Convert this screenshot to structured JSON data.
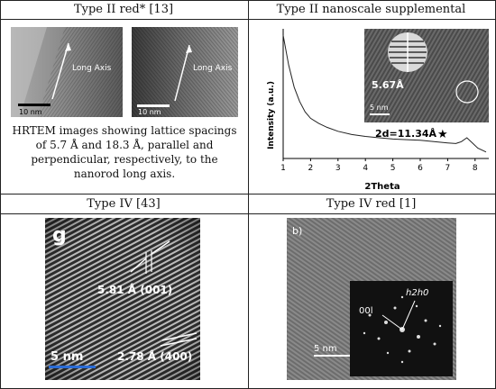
{
  "panels": {
    "top_left": {
      "title": "Type II red* [13]",
      "image_a": {
        "label": "Long Axis",
        "scale": "10 nm"
      },
      "image_b": {
        "label": "Long Axis",
        "scale": "10 nm"
      },
      "caption": "HRTEM images showing lattice spacings of 5.7 Å and 18.3 Å, parallel and perpendicular, respectively, to the nanorod long axis."
    },
    "top_right": {
      "title": "Type II nanoscale supplemental",
      "inset": {
        "spacing": "5.67Å",
        "scale": "5 nm"
      },
      "peak_label": "2d=11.34Å",
      "star": "★"
    },
    "bottom_left": {
      "title": "Type IV [43]",
      "panel_letter": "g",
      "spacing_1": "5.81 Å (001)",
      "spacing_2": "2.78 Å (400)",
      "scale": "5 nm"
    },
    "bottom_right": {
      "title": "Type IV red [1]",
      "panel_letter": "b)",
      "fft_label_1": "h2h0",
      "fft_label_2": "00l",
      "scale": "5 nm"
    }
  },
  "chart_data": {
    "type": "line",
    "title": "",
    "xlabel": "2Theta",
    "ylabel": "Intensity (a.u.)",
    "xlim": [
      1,
      8.5
    ],
    "ylim": [
      0,
      1
    ],
    "xticks": [
      1,
      2,
      3,
      4,
      5,
      6,
      7,
      8
    ],
    "x": [
      1.0,
      1.2,
      1.4,
      1.6,
      1.8,
      2.0,
      2.3,
      2.6,
      3.0,
      3.5,
      4.0,
      4.5,
      5.0,
      5.5,
      6.0,
      6.5,
      7.0,
      7.3,
      7.5,
      7.7,
      7.9,
      8.1,
      8.4
    ],
    "y": [
      0.95,
      0.72,
      0.55,
      0.44,
      0.36,
      0.31,
      0.27,
      0.24,
      0.21,
      0.185,
      0.17,
      0.16,
      0.15,
      0.145,
      0.14,
      0.13,
      0.12,
      0.115,
      0.13,
      0.16,
      0.12,
      0.08,
      0.05
    ],
    "grid": false
  },
  "colors": {
    "border": "#222222",
    "tem_light": "#bdbdbd",
    "tem_dark": "#3a3a3a"
  }
}
